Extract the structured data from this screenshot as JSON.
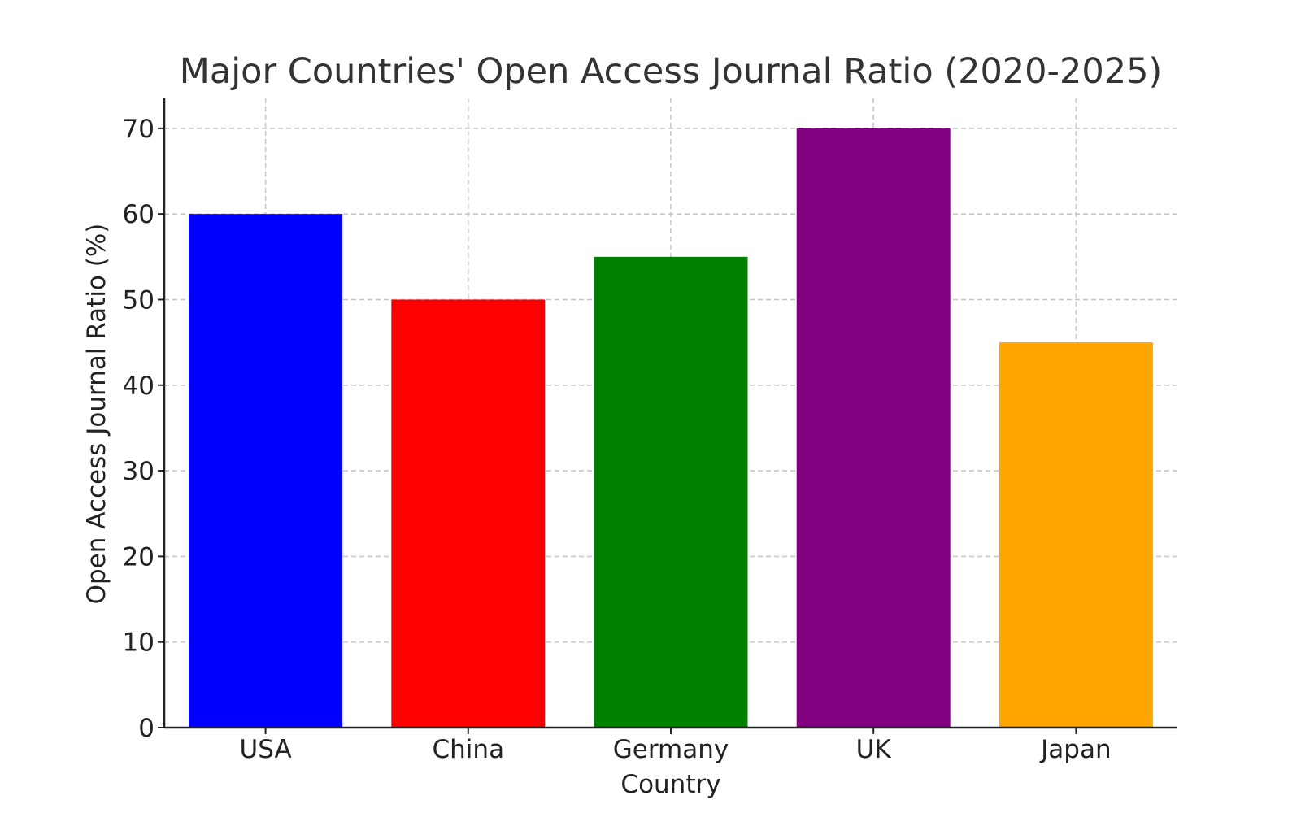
{
  "chart_data": {
    "type": "bar",
    "title": "Major Countries' Open Access Journal Ratio (2020-2025)",
    "xlabel": "Country",
    "ylabel": "Open Access Journal Ratio (%)",
    "categories": [
      "USA",
      "China",
      "Germany",
      "UK",
      "Japan"
    ],
    "values": [
      60,
      50,
      55,
      70,
      45
    ],
    "colors": [
      "#0000ff",
      "#ff0000",
      "#008000",
      "#800080",
      "#ffa500"
    ],
    "ylim": [
      0,
      73.5
    ],
    "yticks": [
      0,
      10,
      20,
      30,
      40,
      50,
      60,
      70
    ],
    "grid": true,
    "legend": "none"
  }
}
